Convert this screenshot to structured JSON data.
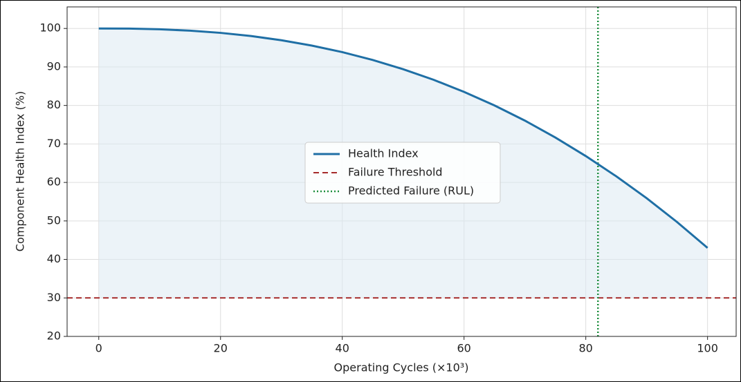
{
  "chart_data": {
    "type": "line",
    "xlabel": "Operating Cycles (×10³)",
    "ylabel": "Component Health Index (%)",
    "x": [
      0,
      5,
      10,
      15,
      20,
      25,
      30,
      35,
      40,
      45,
      50,
      55,
      60,
      65,
      70,
      75,
      80,
      85,
      90,
      95,
      100
    ],
    "series": [
      {
        "name": "Health Index",
        "color": "#1f6fa5",
        "values": [
          100,
          99.96,
          99.79,
          99.43,
          98.86,
          98.04,
          96.94,
          95.55,
          93.86,
          91.81,
          89.42,
          86.67,
          83.52,
          80.0,
          76.06,
          71.67,
          66.85,
          61.6,
          55.9,
          49.7,
          43
        ]
      }
    ],
    "fill_color": "#dceaf2",
    "threshold": {
      "name": "Failure Threshold",
      "value": 30,
      "color": "#a52a2a"
    },
    "predicted_failure": {
      "name": "Predicted Failure (RUL)",
      "value": 82,
      "color": "#1e8e3e"
    },
    "xlim": [
      -5.2,
      104.7
    ],
    "xticks": [
      0,
      20,
      40,
      60,
      80,
      100
    ],
    "ylim": [
      20,
      105.6
    ],
    "yticks": [
      20,
      30,
      40,
      50,
      60,
      70,
      80,
      90,
      100
    ],
    "grid": true,
    "legend": "center"
  }
}
